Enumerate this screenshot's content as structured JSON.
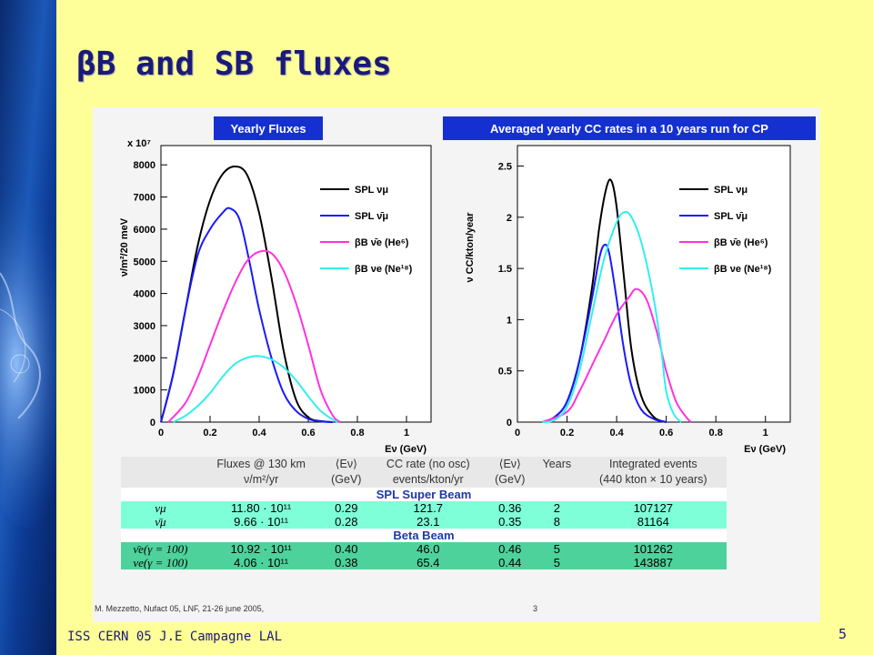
{
  "slide": {
    "title": "βB and SB fluxes",
    "footer_left": "ISS CERN 05 J.E Campagne LAL",
    "page_number": "5",
    "footnote": "M. Mezzetto, Nufact 05, LNF, 21-26 june 2005,",
    "footnote_page": "3"
  },
  "colors": {
    "spl_numu": "#000000",
    "spl_antinumu": "#1a1aff",
    "bb_antinue": "#ff33dd",
    "bb_nue": "#33eeee"
  },
  "chart_data": [
    {
      "type": "line",
      "title": "Yearly Fluxes",
      "xlabel": "Eν (GeV)",
      "ylabel": "ν/m²/20 meV",
      "y_multiplier": "x 10⁷",
      "xlim": [
        0,
        1.1
      ],
      "ylim": [
        0,
        8600
      ],
      "x_ticks": [
        0,
        0.2,
        0.4,
        0.6,
        0.8,
        1
      ],
      "y_ticks": [
        0,
        1000,
        2000,
        3000,
        4000,
        5000,
        6000,
        7000,
        8000
      ],
      "legend_position": "top-right",
      "series": [
        {
          "name": "SPL νμ",
          "color_key": "spl_numu",
          "points": [
            [
              0,
              0
            ],
            [
              0.05,
              1500
            ],
            [
              0.1,
              3500
            ],
            [
              0.15,
              5500
            ],
            [
              0.2,
              6900
            ],
            [
              0.25,
              7700
            ],
            [
              0.3,
              7950
            ],
            [
              0.35,
              7700
            ],
            [
              0.4,
              6500
            ],
            [
              0.45,
              4500
            ],
            [
              0.5,
              2200
            ],
            [
              0.55,
              700
            ],
            [
              0.6,
              150
            ],
            [
              0.65,
              30
            ],
            [
              0.7,
              0
            ]
          ]
        },
        {
          "name": "SPL ν̄μ",
          "color_key": "spl_antinumu",
          "points": [
            [
              0,
              0
            ],
            [
              0.05,
              1500
            ],
            [
              0.1,
              3500
            ],
            [
              0.15,
              5200
            ],
            [
              0.2,
              6000
            ],
            [
              0.25,
              6500
            ],
            [
              0.28,
              6650
            ],
            [
              0.32,
              6300
            ],
            [
              0.36,
              5000
            ],
            [
              0.4,
              3500
            ],
            [
              0.45,
              2000
            ],
            [
              0.5,
              900
            ],
            [
              0.55,
              350
            ],
            [
              0.6,
              100
            ],
            [
              0.65,
              20
            ],
            [
              0.7,
              0
            ]
          ]
        },
        {
          "name": "βB ν̄e (He⁶)",
          "color_key": "bb_antinue",
          "points": [
            [
              0.03,
              0
            ],
            [
              0.1,
              600
            ],
            [
              0.15,
              1400
            ],
            [
              0.2,
              2400
            ],
            [
              0.25,
              3400
            ],
            [
              0.3,
              4300
            ],
            [
              0.35,
              5000
            ],
            [
              0.4,
              5300
            ],
            [
              0.45,
              5250
            ],
            [
              0.5,
              4700
            ],
            [
              0.55,
              3700
            ],
            [
              0.6,
              2400
            ],
            [
              0.65,
              1000
            ],
            [
              0.7,
              200
            ],
            [
              0.73,
              0
            ]
          ]
        },
        {
          "name": "βB νe (Ne¹⁸)",
          "color_key": "bb_nue",
          "points": [
            [
              0.05,
              0
            ],
            [
              0.1,
              200
            ],
            [
              0.15,
              500
            ],
            [
              0.2,
              900
            ],
            [
              0.25,
              1400
            ],
            [
              0.3,
              1800
            ],
            [
              0.35,
              2000
            ],
            [
              0.4,
              2050
            ],
            [
              0.45,
              1950
            ],
            [
              0.5,
              1700
            ],
            [
              0.55,
              1300
            ],
            [
              0.6,
              800
            ],
            [
              0.65,
              350
            ],
            [
              0.7,
              80
            ],
            [
              0.72,
              0
            ]
          ]
        }
      ]
    },
    {
      "type": "line",
      "title": "Averaged yearly CC rates in a 10 years run for CP",
      "xlabel": "Eν (GeV)",
      "ylabel": "ν CC/kton/year",
      "xlim": [
        0,
        1.1
      ],
      "ylim": [
        0,
        2.7
      ],
      "x_ticks": [
        0,
        0.2,
        0.4,
        0.6,
        0.8,
        1
      ],
      "y_ticks": [
        0,
        0.5,
        1,
        1.5,
        2,
        2.5
      ],
      "legend_position": "top-right",
      "series": [
        {
          "name": "SPL νμ",
          "color_key": "spl_numu",
          "points": [
            [
              0.1,
              0
            ],
            [
              0.15,
              0.05
            ],
            [
              0.2,
              0.2
            ],
            [
              0.25,
              0.6
            ],
            [
              0.3,
              1.3
            ],
            [
              0.33,
              1.9
            ],
            [
              0.36,
              2.3
            ],
            [
              0.38,
              2.35
            ],
            [
              0.4,
              2.1
            ],
            [
              0.43,
              1.4
            ],
            [
              0.46,
              0.7
            ],
            [
              0.5,
              0.25
            ],
            [
              0.55,
              0.05
            ],
            [
              0.6,
              0
            ]
          ]
        },
        {
          "name": "SPL ν̄μ",
          "color_key": "spl_antinumu",
          "points": [
            [
              0.1,
              0
            ],
            [
              0.15,
              0.05
            ],
            [
              0.2,
              0.2
            ],
            [
              0.25,
              0.6
            ],
            [
              0.3,
              1.2
            ],
            [
              0.33,
              1.6
            ],
            [
              0.35,
              1.73
            ],
            [
              0.37,
              1.65
            ],
            [
              0.4,
              1.2
            ],
            [
              0.43,
              0.7
            ],
            [
              0.46,
              0.35
            ],
            [
              0.5,
              0.12
            ],
            [
              0.55,
              0.03
            ],
            [
              0.6,
              0
            ]
          ]
        },
        {
          "name": "βB ν̄e (He⁶)",
          "color_key": "bb_antinue",
          "points": [
            [
              0.1,
              0
            ],
            [
              0.2,
              0.1
            ],
            [
              0.25,
              0.3
            ],
            [
              0.3,
              0.55
            ],
            [
              0.35,
              0.8
            ],
            [
              0.4,
              1.05
            ],
            [
              0.45,
              1.22
            ],
            [
              0.48,
              1.3
            ],
            [
              0.52,
              1.2
            ],
            [
              0.56,
              0.9
            ],
            [
              0.6,
              0.5
            ],
            [
              0.64,
              0.2
            ],
            [
              0.68,
              0.05
            ],
            [
              0.7,
              0
            ]
          ]
        },
        {
          "name": "βB νe (Ne¹⁸)",
          "color_key": "bb_nue",
          "points": [
            [
              0.1,
              0
            ],
            [
              0.15,
              0.02
            ],
            [
              0.2,
              0.15
            ],
            [
              0.25,
              0.5
            ],
            [
              0.3,
              1.05
            ],
            [
              0.35,
              1.6
            ],
            [
              0.4,
              1.95
            ],
            [
              0.43,
              2.05
            ],
            [
              0.46,
              2.0
            ],
            [
              0.5,
              1.75
            ],
            [
              0.55,
              1.2
            ],
            [
              0.58,
              0.7
            ],
            [
              0.6,
              0.3
            ],
            [
              0.63,
              0.08
            ],
            [
              0.66,
              0
            ]
          ]
        }
      ]
    }
  ],
  "table": {
    "header": [
      "",
      "Fluxes @ 130 km ν/m²/yr",
      "⟨Eν⟩ (GeV)",
      "CC rate (no osc) events/kton/yr",
      "⟨Eν⟩ (GeV)",
      "Years",
      "Integrated events (440 kton × 10 years)"
    ],
    "header_line1": [
      "",
      "Fluxes @ 130 km",
      "⟨Eν⟩",
      "CC rate (no osc)",
      "⟨Eν⟩",
      "Years",
      "Integrated events"
    ],
    "header_line2": [
      "",
      "ν/m²/yr",
      "(GeV)",
      "events/kton/yr",
      "(GeV)",
      "",
      "(440 kton × 10 years)"
    ],
    "section_sb": "SPL Super Beam",
    "section_bb": "Beta Beam",
    "rows_sb": [
      [
        "νμ",
        "11.80 · 10¹¹",
        "0.29",
        "121.7",
        "0.36",
        "2",
        "107127"
      ],
      [
        "ν̄μ",
        "9.66 · 10¹¹",
        "0.28",
        "23.1",
        "0.35",
        "8",
        "81164"
      ]
    ],
    "rows_bb": [
      [
        "ν̄e(γ = 100)",
        "10.92 · 10¹¹",
        "0.40",
        "46.0",
        "0.46",
        "5",
        "101262"
      ],
      [
        "νe(γ = 100)",
        "4.06 · 10¹¹",
        "0.38",
        "65.4",
        "0.44",
        "5",
        "143887"
      ]
    ]
  }
}
